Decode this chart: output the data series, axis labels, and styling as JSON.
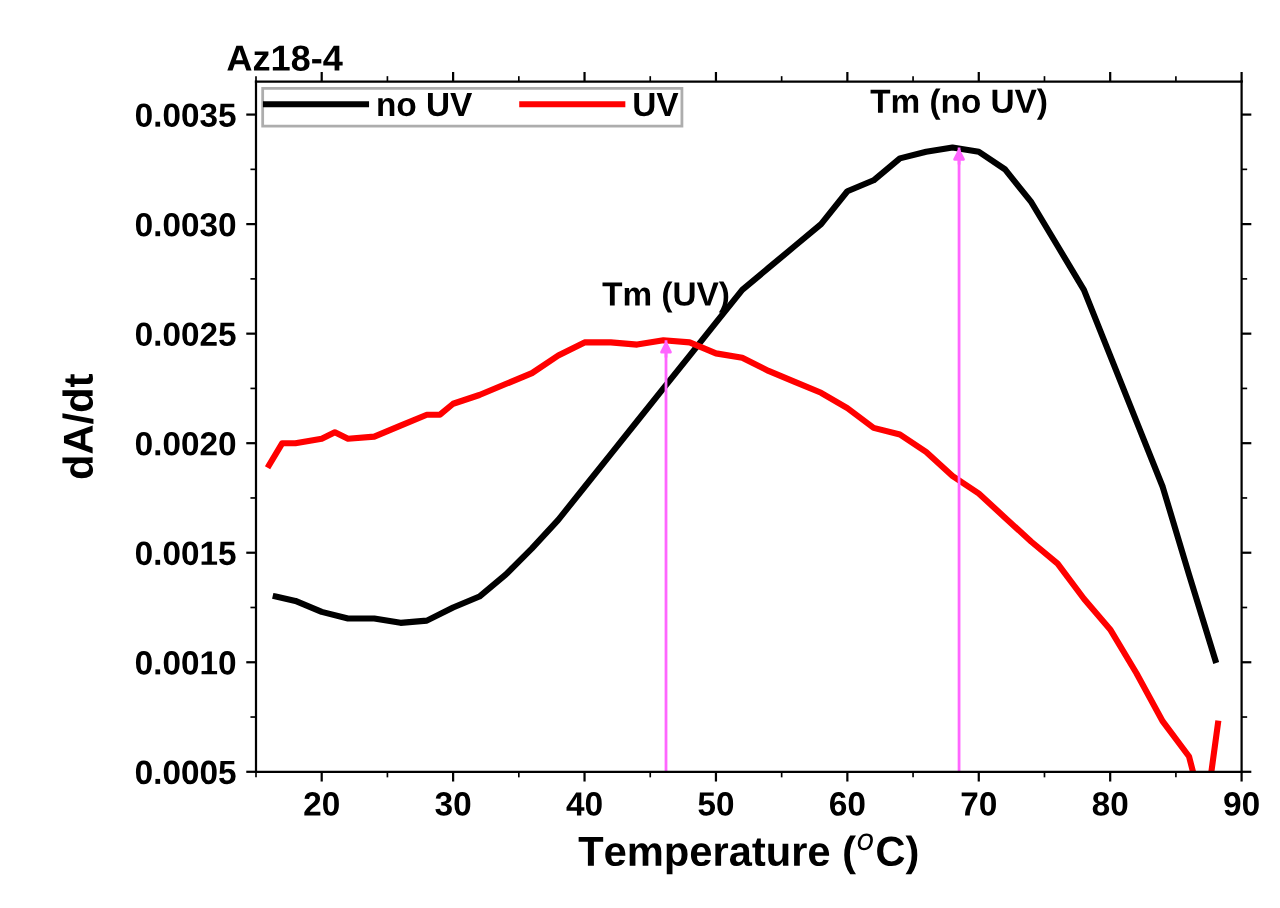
{
  "chart_data": {
    "type": "line",
    "title": "Az18-4",
    "xlabel": "Temperature ($^{o}$C)",
    "ylabel": "dA/dt",
    "xlim": [
      15,
      90
    ],
    "ylim": [
      0.0005,
      0.00365
    ],
    "xticks": [
      20,
      30,
      40,
      50,
      60,
      70,
      80,
      90
    ],
    "yticks": [
      {
        "value": 0.0005,
        "label": "0.0005"
      },
      {
        "value": 0.001,
        "label": "0.0010"
      },
      {
        "value": 0.0015,
        "label": "0.0015"
      },
      {
        "value": 0.002,
        "label": "0.0020"
      },
      {
        "value": 0.0025,
        "label": "0.0025"
      },
      {
        "value": 0.003,
        "label": "0.0030"
      },
      {
        "value": 0.0035,
        "label": "0.0035"
      }
    ],
    "legend": "top left",
    "grid": false,
    "marker": "none",
    "line_style": "solid",
    "series": [
      {
        "name": "no UV",
        "color": "#000000",
        "x": [
          16.5,
          18,
          20,
          22,
          24,
          26,
          28,
          30,
          32,
          34,
          36,
          38,
          40,
          42,
          44,
          46,
          48,
          50,
          52,
          54,
          56,
          58,
          60,
          62,
          64,
          66,
          68,
          70,
          72,
          74,
          76,
          78,
          80,
          82,
          84,
          86,
          88
        ],
        "values": [
          0.0013,
          0.00128,
          0.00123,
          0.0012,
          0.0012,
          0.00118,
          0.00119,
          0.00125,
          0.0013,
          0.0014,
          0.00152,
          0.00165,
          0.0018,
          0.00195,
          0.0021,
          0.00225,
          0.0024,
          0.00255,
          0.0027,
          0.0028,
          0.0029,
          0.003,
          0.00315,
          0.0032,
          0.0033,
          0.00333,
          0.00335,
          0.00333,
          0.00325,
          0.0031,
          0.0029,
          0.0027,
          0.0024,
          0.0021,
          0.0018,
          0.0014,
          0.00101
        ]
      },
      {
        "name": "UV",
        "color": "#ff0000",
        "x": [
          16,
          17,
          18,
          20,
          21,
          22,
          24,
          26,
          28,
          29,
          30,
          32,
          34,
          36,
          38,
          40,
          42,
          44,
          46,
          48,
          50,
          52,
          54,
          56,
          58,
          60,
          62,
          64,
          66,
          68,
          70,
          72,
          74,
          76,
          78,
          80,
          82,
          84,
          86,
          86.3,
          87,
          87.7,
          88.2
        ],
        "values": [
          0.0019,
          0.002,
          0.002,
          0.00202,
          0.00205,
          0.00202,
          0.00203,
          0.00208,
          0.00213,
          0.00213,
          0.00218,
          0.00222,
          0.00227,
          0.00232,
          0.0024,
          0.00246,
          0.00246,
          0.00245,
          0.00247,
          0.00246,
          0.00241,
          0.00239,
          0.00233,
          0.00228,
          0.00223,
          0.00216,
          0.00207,
          0.00204,
          0.00196,
          0.00185,
          0.00177,
          0.00166,
          0.00155,
          0.00145,
          0.00129,
          0.00115,
          0.00095,
          0.00073,
          0.00057,
          0.0005,
          null,
          0.0005,
          0.00072
        ]
      }
    ],
    "ref_lines": [
      {
        "axis": "x",
        "value": 46.2,
        "color": "#ff66ff"
      },
      {
        "axis": "x",
        "value": 68.5,
        "color": "#ff66ff"
      }
    ],
    "annotations": [
      {
        "text": "Tm (UV)",
        "x": 46.2,
        "y": 0.00247
      },
      {
        "text": "Tm (no UV)",
        "x": 68.5,
        "y": 0.00335
      }
    ]
  }
}
